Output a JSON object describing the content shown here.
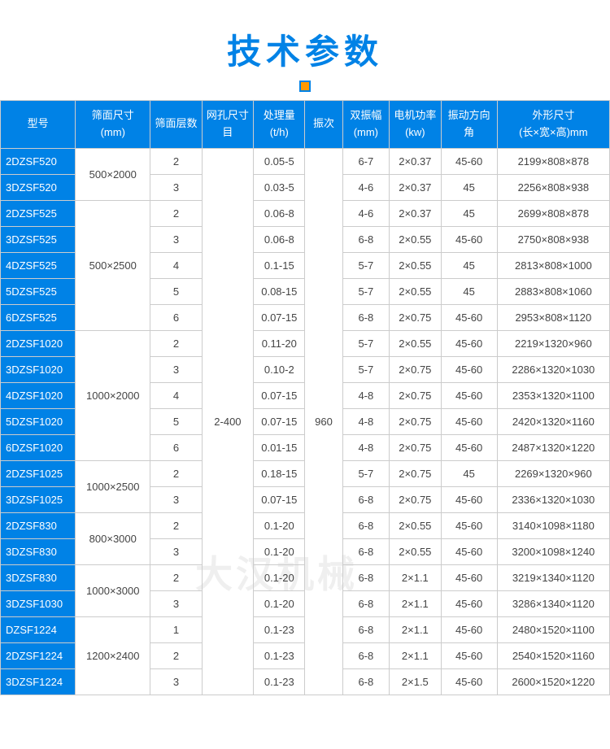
{
  "title": "技术参数",
  "watermark": "大汉机械",
  "columns": [
    "型号",
    "筛面尺寸\n(mm)",
    "筛面层数",
    "网孔尺寸\n目",
    "处理量\n(t/h)",
    "振次",
    "双振幅\n(mm)",
    "电机功率\n(kw)",
    "振动方向角",
    "外形尺寸\n(长×宽×高)mm"
  ],
  "mesh_size": "2-400",
  "frequency": "960",
  "groups": [
    {
      "screen_size": "500×2000",
      "rows": [
        {
          "model": "2DZSF520",
          "layers": "2",
          "capacity": "0.05-5",
          "amplitude": "6-7",
          "power": "2×0.37",
          "angle": "45-60",
          "dimensions": "2199×808×878"
        },
        {
          "model": "3DZSF520",
          "layers": "3",
          "capacity": "0.03-5",
          "amplitude": "4-6",
          "power": "2×0.37",
          "angle": "45",
          "dimensions": "2256×808×938"
        }
      ]
    },
    {
      "screen_size": "500×2500",
      "rows": [
        {
          "model": "2DZSF525",
          "layers": "2",
          "capacity": "0.06-8",
          "amplitude": "4-6",
          "power": "2×0.37",
          "angle": "45",
          "dimensions": "2699×808×878"
        },
        {
          "model": "3DZSF525",
          "layers": "3",
          "capacity": "0.06-8",
          "amplitude": "6-8",
          "power": "2×0.55",
          "angle": "45-60",
          "dimensions": "2750×808×938"
        },
        {
          "model": "4DZSF525",
          "layers": "4",
          "capacity": "0.1-15",
          "amplitude": "5-7",
          "power": "2×0.55",
          "angle": "45",
          "dimensions": "2813×808×1000"
        },
        {
          "model": "5DZSF525",
          "layers": "5",
          "capacity": "0.08-15",
          "amplitude": "5-7",
          "power": "2×0.55",
          "angle": "45",
          "dimensions": "2883×808×1060"
        },
        {
          "model": "6DZSF525",
          "layers": "6",
          "capacity": "0.07-15",
          "amplitude": "6-8",
          "power": "2×0.75",
          "angle": "45-60",
          "dimensions": "2953×808×1120"
        }
      ]
    },
    {
      "screen_size": "1000×2000",
      "rows": [
        {
          "model": "2DZSF1020",
          "layers": "2",
          "capacity": "0.11-20",
          "amplitude": "5-7",
          "power": "2×0.55",
          "angle": "45-60",
          "dimensions": "2219×1320×960"
        },
        {
          "model": "3DZSF1020",
          "layers": "3",
          "capacity": "0.10-2",
          "amplitude": "5-7",
          "power": "2×0.75",
          "angle": "45-60",
          "dimensions": "2286×1320×1030"
        },
        {
          "model": "4DZSF1020",
          "layers": "4",
          "capacity": "0.07-15",
          "amplitude": "4-8",
          "power": "2×0.75",
          "angle": "45-60",
          "dimensions": "2353×1320×1100"
        },
        {
          "model": "5DZSF1020",
          "layers": "5",
          "capacity": "0.07-15",
          "amplitude": "4-8",
          "power": "2×0.75",
          "angle": "45-60",
          "dimensions": "2420×1320×1160"
        },
        {
          "model": "6DZSF1020",
          "layers": "6",
          "capacity": "0.01-15",
          "amplitude": "4-8",
          "power": "2×0.75",
          "angle": "45-60",
          "dimensions": "2487×1320×1220"
        }
      ]
    },
    {
      "screen_size": "1000×2500",
      "rows": [
        {
          "model": "2DZSF1025",
          "layers": "2",
          "capacity": "0.18-15",
          "amplitude": "5-7",
          "power": "2×0.75",
          "angle": "45",
          "dimensions": "2269×1320×960"
        },
        {
          "model": "3DZSF1025",
          "layers": "3",
          "capacity": "0.07-15",
          "amplitude": "6-8",
          "power": "2×0.75",
          "angle": "45-60",
          "dimensions": "2336×1320×1030"
        }
      ]
    },
    {
      "screen_size": "800×3000",
      "rows": [
        {
          "model": "2DZSF830",
          "layers": "2",
          "capacity": "0.1-20",
          "amplitude": "6-8",
          "power": "2×0.55",
          "angle": "45-60",
          "dimensions": "3140×1098×1180"
        },
        {
          "model": "3DZSF830",
          "layers": "3",
          "capacity": "0.1-20",
          "amplitude": "6-8",
          "power": "2×0.55",
          "angle": "45-60",
          "dimensions": "3200×1098×1240"
        }
      ]
    },
    {
      "screen_size": "1000×3000",
      "rows": [
        {
          "model": "3DZSF830",
          "layers": "2",
          "capacity": "0.1-20",
          "amplitude": "6-8",
          "power": "2×1.1",
          "angle": "45-60",
          "dimensions": "3219×1340×1120"
        },
        {
          "model": "3DZSF1030",
          "layers": "3",
          "capacity": "0.1-20",
          "amplitude": "6-8",
          "power": "2×1.1",
          "angle": "45-60",
          "dimensions": "3286×1340×1120"
        }
      ]
    },
    {
      "screen_size": "1200×2400",
      "rows": [
        {
          "model": "DZSF1224",
          "layers": "1",
          "capacity": "0.1-23",
          "amplitude": "6-8",
          "power": "2×1.1",
          "angle": "45-60",
          "dimensions": "2480×1520×1100"
        },
        {
          "model": "2DZSF1224",
          "layers": "2",
          "capacity": "0.1-23",
          "amplitude": "6-8",
          "power": "2×1.1",
          "angle": "45-60",
          "dimensions": "2540×1520×1160"
        },
        {
          "model": "3DZSF1224",
          "layers": "3",
          "capacity": "0.1-23",
          "amplitude": "6-8",
          "power": "2×1.5",
          "angle": "45-60",
          "dimensions": "2600×1520×1220"
        }
      ]
    }
  ]
}
